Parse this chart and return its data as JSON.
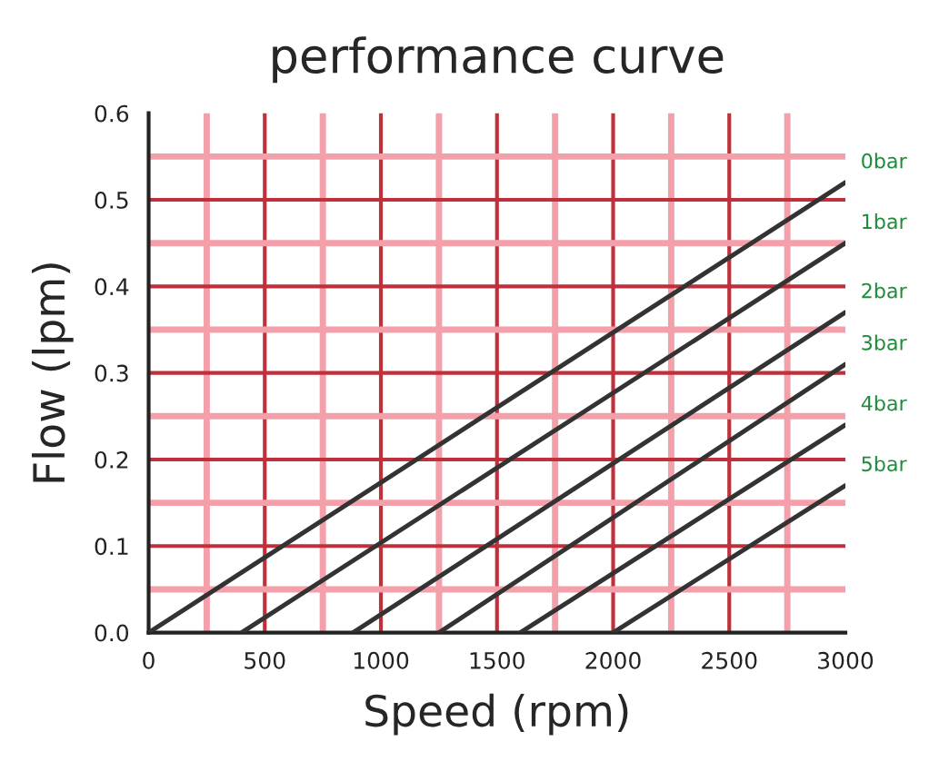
{
  "chart_data": {
    "type": "line",
    "title": "performance curve",
    "xlabel": "Speed (rpm)",
    "ylabel": "Flow (lpm)",
    "xlim": [
      0,
      3000
    ],
    "ylim": [
      0,
      0.6
    ],
    "xticks": [
      0,
      {
        "value": 250,
        "label": null
      },
      500,
      {
        "value": 750,
        "label": null
      },
      1000,
      {
        "value": 1250,
        "label": null
      },
      1500,
      {
        "value": 1750,
        "label": null
      },
      2000,
      {
        "value": 2250,
        "label": null
      },
      2500,
      {
        "value": 2750,
        "label": null
      },
      3000
    ],
    "yticks": [
      {
        "value": 0,
        "label": "0.0"
      },
      {
        "value": 0.05,
        "label": null
      },
      0.1,
      {
        "value": 0.15,
        "label": null
      },
      0.2,
      {
        "value": 0.25,
        "label": null
      },
      0.3,
      {
        "value": 0.35,
        "label": null
      },
      0.4,
      {
        "value": 0.45,
        "label": null
      },
      0.5,
      {
        "value": 0.55,
        "label": null
      },
      0.6
    ],
    "grid": true,
    "legend": false,
    "marker": "none",
    "line_style": "solid",
    "series": [
      {
        "name": "0bar",
        "color": "#333333",
        "x": [
          0,
          3000
        ],
        "values": [
          0,
          0.52
        ]
      },
      {
        "name": "1bar",
        "color": "#333333",
        "x": [
          400,
          3000
        ],
        "values": [
          0,
          0.45
        ]
      },
      {
        "name": "2bar",
        "color": "#333333",
        "x": [
          880,
          3000
        ],
        "values": [
          0,
          0.37
        ]
      },
      {
        "name": "3bar",
        "color": "#333333",
        "x": [
          1250,
          3000
        ],
        "values": [
          0,
          0.31
        ]
      },
      {
        "name": "4bar",
        "color": "#333333",
        "x": [
          1600,
          3000
        ],
        "values": [
          0,
          0.24
        ]
      },
      {
        "name": "5bar",
        "color": "#333333",
        "x": [
          2000,
          3000
        ],
        "values": [
          0,
          0.17
        ]
      }
    ]
  }
}
